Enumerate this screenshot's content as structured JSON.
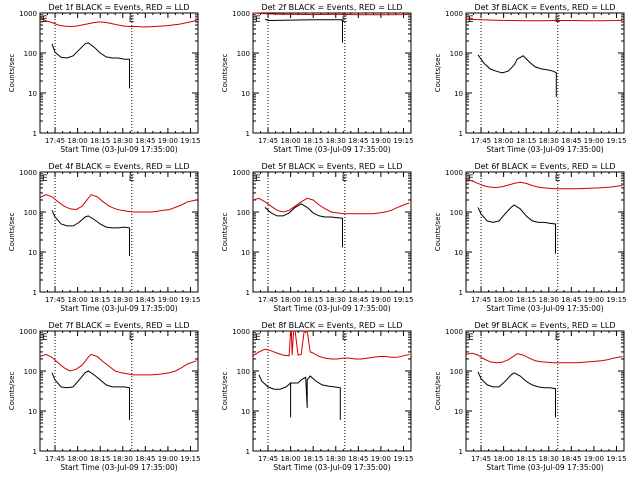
{
  "chart_data": [
    {
      "type": "line",
      "title": "Det 1f BLACK = Events, RED = LLD",
      "xlabel": "Start Time (03-Jul-09 17:35:00)",
      "ylabel": "Counts/sec",
      "marker_label": "E",
      "x_ticks": [
        "17:45",
        "18:00",
        "18:15",
        "18:30",
        "18:45",
        "19:00",
        "19:15"
      ],
      "y_ticks": [
        "1",
        "10",
        "100",
        "1000"
      ],
      "ylim": [
        1,
        1000
      ],
      "yscale": "log",
      "xlim_min": [
        0,
        105
      ],
      "series": [
        {
          "color": "#000000",
          "x": [
            8,
            10,
            14,
            18,
            22,
            26,
            30,
            32,
            36,
            40,
            44,
            48,
            52,
            56,
            59.5,
            59.5
          ],
          "values": [
            170,
            105,
            78,
            75,
            85,
            120,
            170,
            180,
            140,
            100,
            80,
            75,
            75,
            70,
            70,
            13
          ]
        },
        {
          "color": "#d00000",
          "x": [
            0,
            4,
            8,
            12,
            16,
            20,
            24,
            28,
            32,
            36,
            40,
            44,
            48,
            52,
            56,
            60,
            64,
            68,
            72,
            76,
            80,
            84,
            88,
            92,
            96,
            100,
            104
          ],
          "values": [
            780,
            640,
            580,
            500,
            470,
            460,
            470,
            500,
            540,
            580,
            600,
            580,
            540,
            500,
            470,
            460,
            460,
            450,
            450,
            460,
            470,
            480,
            500,
            520,
            560,
            600,
            650
          ]
        }
      ],
      "vlines_min": [
        10,
        61
      ]
    },
    {
      "type": "line",
      "title": "Det 2f BLACK = Events, RED = LLD",
      "xlabel": "Start Time (03-Jul-09 17:35:00)",
      "ylabel": "Counts/sec",
      "marker_label": "E",
      "x_ticks": [
        "17:45",
        "18:00",
        "18:15",
        "18:30",
        "18:45",
        "19:00",
        "19:15"
      ],
      "y_ticks": [
        "1",
        "10",
        "100",
        "1000"
      ],
      "ylim": [
        1,
        1000
      ],
      "yscale": "log",
      "xlim_min": [
        0,
        105
      ],
      "series": [
        {
          "color": "#000000",
          "x": [
            8,
            10,
            20,
            30,
            40,
            50,
            59,
            59.5,
            59.5
          ],
          "values": [
            700,
            650,
            660,
            670,
            680,
            680,
            680,
            600,
            180
          ]
        },
        {
          "color": "#d00000",
          "x": [
            0,
            10,
            20,
            30,
            40,
            50,
            60,
            70,
            80,
            90,
            100,
            104
          ],
          "values": [
            1000,
            950,
            930,
            920,
            910,
            920,
            920,
            900,
            900,
            900,
            910,
            930
          ]
        }
      ],
      "vlines_min": [
        10,
        61
      ]
    },
    {
      "type": "line",
      "title": "Det 3f BLACK = Events, RED = LLD",
      "xlabel": "Start Time (03-Jul-09 17:35:00)",
      "ylabel": "Counts/sec",
      "marker_label": "E",
      "x_ticks": [
        "17:45",
        "18:00",
        "18:15",
        "18:30",
        "18:45",
        "19:00",
        "19:15"
      ],
      "y_ticks": [
        "1",
        "10",
        "100",
        "1000"
      ],
      "ylim": [
        1,
        1000
      ],
      "yscale": "log",
      "xlim_min": [
        0,
        105
      ],
      "series": [
        {
          "color": "#000000",
          "x": [
            8,
            12,
            16,
            20,
            24,
            28,
            32,
            34,
            38,
            42,
            46,
            50,
            54,
            58,
            60,
            60
          ],
          "values": [
            90,
            55,
            40,
            35,
            32,
            35,
            50,
            70,
            85,
            60,
            45,
            40,
            38,
            35,
            32,
            8
          ]
        },
        {
          "color": "#d00000",
          "x": [
            0,
            10,
            20,
            30,
            40,
            50,
            60,
            70,
            80,
            90,
            100,
            104
          ],
          "values": [
            700,
            680,
            660,
            650,
            640,
            640,
            650,
            650,
            640,
            640,
            650,
            660
          ]
        }
      ],
      "vlines_min": [
        10,
        61
      ]
    },
    {
      "type": "line",
      "title": "Det 4f BLACK = Events, RED = LLD",
      "xlabel": "Start Time (03-Jul-09 17:35:00)",
      "ylabel": "Counts/sec",
      "marker_label": "E",
      "x_ticks": [
        "17:45",
        "18:00",
        "18:15",
        "18:30",
        "18:45",
        "19:00",
        "19:15"
      ],
      "y_ticks": [
        "1",
        "10",
        "100",
        "1000"
      ],
      "ylim": [
        1,
        1000
      ],
      "yscale": "log",
      "xlim_min": [
        0,
        105
      ],
      "series": [
        {
          "color": "#000000",
          "x": [
            8,
            10,
            14,
            18,
            22,
            26,
            30,
            32,
            36,
            40,
            44,
            48,
            52,
            56,
            59.5,
            59.5
          ],
          "values": [
            110,
            75,
            50,
            45,
            45,
            55,
            75,
            80,
            65,
            50,
            42,
            40,
            40,
            42,
            40,
            8
          ]
        },
        {
          "color": "#d00000",
          "x": [
            0,
            4,
            8,
            12,
            16,
            20,
            24,
            28,
            32,
            34,
            38,
            42,
            46,
            50,
            54,
            58,
            62,
            66,
            70,
            74,
            78,
            82,
            86,
            90,
            94,
            98,
            104
          ],
          "values": [
            230,
            270,
            240,
            180,
            140,
            120,
            115,
            140,
            220,
            270,
            240,
            180,
            140,
            120,
            110,
            105,
            100,
            100,
            100,
            100,
            105,
            110,
            115,
            130,
            150,
            180,
            200
          ]
        }
      ],
      "vlines_min": [
        10,
        61
      ]
    },
    {
      "type": "line",
      "title": "Det 5f BLACK = Events, RED = LLD",
      "xlabel": "Start Time (03-Jul-09 17:35:00)",
      "ylabel": "Counts/sec",
      "marker_label": "E",
      "x_ticks": [
        "17:45",
        "18:00",
        "18:15",
        "18:30",
        "18:45",
        "19:00",
        "19:15"
      ],
      "y_ticks": [
        "1",
        "10",
        "100",
        "1000"
      ],
      "ylim": [
        1,
        1000
      ],
      "yscale": "log",
      "xlim_min": [
        0,
        105
      ],
      "series": [
        {
          "color": "#000000",
          "x": [
            8,
            12,
            16,
            20,
            24,
            28,
            32,
            36,
            40,
            44,
            48,
            52,
            56,
            59.5,
            59.5
          ],
          "values": [
            130,
            95,
            80,
            80,
            95,
            130,
            160,
            130,
            95,
            80,
            75,
            75,
            72,
            70,
            13
          ]
        },
        {
          "color": "#d00000",
          "x": [
            0,
            4,
            8,
            12,
            16,
            20,
            24,
            28,
            32,
            36,
            40,
            44,
            48,
            52,
            56,
            60,
            64,
            68,
            72,
            76,
            80,
            84,
            88,
            92,
            96,
            100,
            104
          ],
          "values": [
            200,
            220,
            180,
            140,
            110,
            100,
            110,
            140,
            180,
            220,
            200,
            150,
            120,
            100,
            95,
            90,
            90,
            90,
            90,
            90,
            90,
            95,
            100,
            110,
            130,
            150,
            170
          ]
        }
      ],
      "vlines_min": [
        10,
        61
      ]
    },
    {
      "type": "line",
      "title": "Det 6f BLACK = Events, RED = LLD",
      "xlabel": "Start Time (03-Jul-09 17:35:00)",
      "ylabel": "Counts/sec",
      "marker_label": "E",
      "x_ticks": [
        "17:45",
        "18:00",
        "18:15",
        "18:30",
        "18:45",
        "19:00",
        "19:15"
      ],
      "y_ticks": [
        "1",
        "10",
        "100",
        "1000"
      ],
      "ylim": [
        1,
        1000
      ],
      "yscale": "log",
      "xlim_min": [
        0,
        105
      ],
      "series": [
        {
          "color": "#000000",
          "x": [
            8,
            10,
            14,
            18,
            22,
            26,
            30,
            32,
            36,
            40,
            44,
            48,
            52,
            56,
            59.5,
            59.5
          ],
          "values": [
            130,
            90,
            60,
            55,
            60,
            90,
            130,
            150,
            120,
            80,
            60,
            55,
            55,
            52,
            50,
            9
          ]
        },
        {
          "color": "#d00000",
          "x": [
            0,
            4,
            8,
            12,
            16,
            20,
            24,
            28,
            32,
            36,
            40,
            44,
            48,
            52,
            56,
            60,
            64,
            68,
            72,
            76,
            80,
            84,
            88,
            92,
            96,
            100,
            104
          ],
          "values": [
            650,
            600,
            520,
            450,
            420,
            410,
            430,
            470,
            520,
            560,
            520,
            460,
            420,
            400,
            390,
            380,
            380,
            380,
            380,
            385,
            390,
            395,
            400,
            410,
            420,
            440,
            460
          ]
        }
      ],
      "vlines_min": [
        10,
        61
      ]
    },
    {
      "type": "line",
      "title": "Det 7f BLACK = Events, RED = LLD",
      "xlabel": "Start Time (03-Jul-09 17:35:00)",
      "ylabel": "Counts/sec",
      "marker_label": "E",
      "x_ticks": [
        "17:45",
        "18:00",
        "18:15",
        "18:30",
        "18:45",
        "19:00",
        "19:15"
      ],
      "y_ticks": [
        "1",
        "10",
        "100",
        "1000"
      ],
      "ylim": [
        1,
        1000
      ],
      "yscale": "log",
      "xlim_min": [
        0,
        105
      ],
      "series": [
        {
          "color": "#000000",
          "x": [
            8,
            10,
            14,
            18,
            22,
            26,
            30,
            32,
            36,
            40,
            44,
            48,
            52,
            56,
            59.5,
            59.5
          ],
          "values": [
            90,
            60,
            40,
            38,
            40,
            60,
            90,
            100,
            80,
            60,
            45,
            40,
            40,
            40,
            38,
            6
          ]
        },
        {
          "color": "#d00000",
          "x": [
            0,
            4,
            8,
            12,
            16,
            20,
            24,
            28,
            32,
            34,
            38,
            42,
            46,
            50,
            54,
            58,
            62,
            66,
            70,
            74,
            78,
            82,
            86,
            90,
            94,
            98,
            104
          ],
          "values": [
            230,
            260,
            220,
            160,
            120,
            100,
            110,
            140,
            220,
            260,
            230,
            170,
            130,
            100,
            90,
            85,
            80,
            80,
            80,
            80,
            82,
            85,
            90,
            100,
            120,
            150,
            180
          ]
        }
      ],
      "vlines_min": [
        10,
        61
      ]
    },
    {
      "type": "line",
      "title": "Det 8f BLACK = Events, RED = LLD",
      "xlabel": "Start Time (03-Jul-09 17:35:00)",
      "ylabel": "Counts/sec",
      "marker_label": "E",
      "x_ticks": [
        "17:45",
        "18:00",
        "18:15",
        "18:30",
        "18:45",
        "19:00",
        "19:15"
      ],
      "y_ticks": [
        "1",
        "10",
        "100",
        "1000"
      ],
      "ylim": [
        1,
        1000
      ],
      "yscale": "log",
      "xlim_min": [
        0,
        105
      ],
      "series": [
        {
          "color": "#000000",
          "x": [
            4,
            6,
            10,
            14,
            18,
            22,
            25,
            25,
            25,
            27,
            30,
            32,
            35,
            36,
            36,
            38,
            42,
            46,
            50,
            54,
            58,
            58
          ],
          "values": [
            80,
            55,
            40,
            35,
            35,
            40,
            50,
            7,
            50,
            50,
            50,
            60,
            70,
            12,
            60,
            75,
            55,
            45,
            42,
            40,
            38,
            6
          ]
        },
        {
          "color": "#d00000",
          "x": [
            0,
            4,
            8,
            12,
            16,
            20,
            24,
            25,
            25.5,
            26,
            27,
            28,
            30,
            32,
            34,
            36,
            38,
            40,
            44,
            48,
            52,
            56,
            60,
            64,
            68,
            72,
            76,
            80,
            84,
            88,
            92,
            96,
            100,
            104
          ],
          "values": [
            240,
            300,
            350,
            320,
            280,
            250,
            240,
            1000,
            1000,
            250,
            1000,
            1000,
            250,
            260,
            1000,
            1000,
            300,
            280,
            230,
            210,
            200,
            200,
            210,
            210,
            200,
            200,
            210,
            220,
            230,
            230,
            220,
            220,
            240,
            260
          ]
        }
      ],
      "vlines_min": [
        10,
        61
      ]
    },
    {
      "type": "line",
      "title": "Det 9f BLACK = Events, RED = LLD",
      "xlabel": "Start Time (03-Jul-09 17:35:00)",
      "ylabel": "Counts/sec",
      "marker_label": "E",
      "x_ticks": [
        "17:45",
        "18:00",
        "18:15",
        "18:30",
        "18:45",
        "19:00",
        "19:15"
      ],
      "y_ticks": [
        "1",
        "10",
        "100",
        "1000"
      ],
      "ylim": [
        1,
        1000
      ],
      "yscale": "log",
      "xlim_min": [
        0,
        105
      ],
      "series": [
        {
          "color": "#000000",
          "x": [
            8,
            10,
            14,
            18,
            22,
            26,
            30,
            32,
            36,
            40,
            44,
            48,
            52,
            56,
            59.5,
            59.5
          ],
          "values": [
            95,
            65,
            45,
            40,
            40,
            55,
            80,
            90,
            75,
            55,
            45,
            40,
            38,
            38,
            36,
            7
          ]
        },
        {
          "color": "#d00000",
          "x": [
            0,
            4,
            8,
            12,
            16,
            20,
            24,
            28,
            32,
            34,
            38,
            42,
            46,
            50,
            54,
            58,
            62,
            66,
            70,
            74,
            78,
            82,
            86,
            90,
            94,
            98,
            104
          ],
          "values": [
            260,
            280,
            250,
            200,
            170,
            160,
            165,
            190,
            240,
            270,
            250,
            210,
            180,
            170,
            165,
            160,
            160,
            160,
            160,
            160,
            165,
            170,
            175,
            180,
            190,
            210,
            230
          ]
        }
      ],
      "vlines_min": [
        10,
        61
      ]
    }
  ]
}
